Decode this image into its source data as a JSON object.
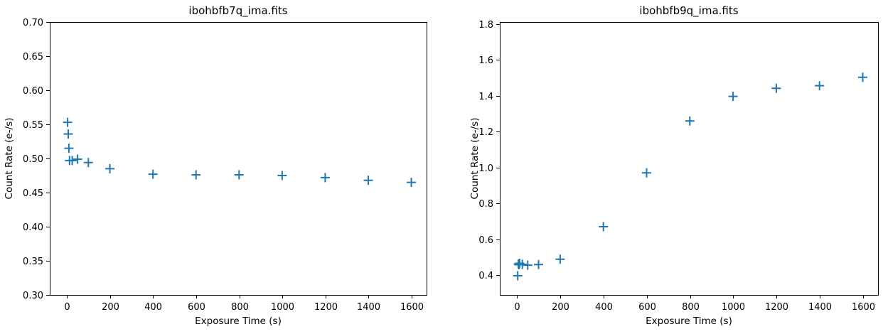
{
  "figure": {
    "background": "#ffffff",
    "axis_color": "#000000",
    "marker_color": "#1f77b4"
  },
  "chart_data": [
    {
      "type": "scatter",
      "title": "ibohbfb7q_ima.fits",
      "xlabel": "Exposure Time (s)",
      "ylabel": "Count Rate (e-/s)",
      "marker": "plus",
      "marker_color": "#1f77b4",
      "grid": false,
      "xlim": [
        -80,
        1670
      ],
      "ylim": [
        0.3,
        0.7
      ],
      "xticks": [
        0,
        200,
        400,
        600,
        800,
        1000,
        1200,
        1400,
        1600
      ],
      "xtick_labels": [
        "0",
        "200",
        "400",
        "600",
        "800",
        "1000",
        "1200",
        "1400",
        "1600"
      ],
      "yticks": [
        0.3,
        0.35,
        0.4,
        0.45,
        0.5,
        0.55,
        0.6,
        0.65,
        0.7
      ],
      "ytick_labels": [
        "0.30",
        "0.35",
        "0.40",
        "0.45",
        "0.50",
        "0.55",
        "0.60",
        "0.65",
        "0.70"
      ],
      "x": [
        2.93,
        5.87,
        8.8,
        11.73,
        24.23,
        49.23,
        99.23,
        199.23,
        399.23,
        599.23,
        799.23,
        999.23,
        1199.23,
        1399.23,
        1599.23
      ],
      "y": [
        0.553,
        0.536,
        0.515,
        0.497,
        0.497,
        0.499,
        0.494,
        0.485,
        0.477,
        0.476,
        0.476,
        0.475,
        0.472,
        0.468,
        0.465
      ]
    },
    {
      "type": "scatter",
      "title": "ibohbfb9q_ima.fits",
      "xlabel": "Exposure Time (s)",
      "ylabel": "Count Rate (e-/s)",
      "marker": "plus",
      "marker_color": "#1f77b4",
      "grid": false,
      "xlim": [
        -80,
        1670
      ],
      "ylim": [
        0.29,
        1.81
      ],
      "xticks": [
        0,
        200,
        400,
        600,
        800,
        1000,
        1200,
        1400,
        1600
      ],
      "xtick_labels": [
        "0",
        "200",
        "400",
        "600",
        "800",
        "1000",
        "1200",
        "1400",
        "1600"
      ],
      "yticks": [
        0.4,
        0.6,
        0.8,
        1.0,
        1.2,
        1.4,
        1.6,
        1.8
      ],
      "ytick_labels": [
        "0.4",
        "0.6",
        "0.8",
        "1.0",
        "1.2",
        "1.4",
        "1.6",
        "1.8"
      ],
      "x": [
        2.93,
        5.87,
        8.8,
        11.73,
        24.23,
        49.23,
        99.23,
        199.23,
        399.23,
        599.23,
        799.23,
        999.23,
        1199.23,
        1399.23,
        1599.23
      ],
      "y": [
        0.397,
        0.462,
        0.458,
        0.466,
        0.46,
        0.456,
        0.459,
        0.489,
        0.67,
        0.97,
        1.259,
        1.396,
        1.441,
        1.455,
        1.502
      ]
    }
  ]
}
